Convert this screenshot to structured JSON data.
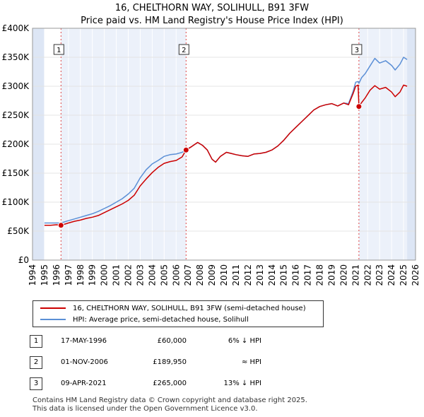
{
  "header": {
    "title": "16, CHELTHORN WAY, SOLIHULL, B91 3FW",
    "subtitle": "Price paid vs. HM Land Registry's House Price Index (HPI)"
  },
  "colors": {
    "property": "#cc0000",
    "hpi": "#5b8fd6",
    "shade": "#dde6f5"
  },
  "chart_data": {
    "type": "line",
    "title": "Price paid vs. HM Land Registry's House Price Index (HPI)",
    "xlabel": "",
    "ylabel": "",
    "xlim": [
      1994,
      2026
    ],
    "ylim": [
      0,
      400000
    ],
    "x_ticks": [
      "1994",
      "1995",
      "1996",
      "1997",
      "1998",
      "1999",
      "2000",
      "2001",
      "2002",
      "2003",
      "2004",
      "2005",
      "2006",
      "2007",
      "2008",
      "2009",
      "2010",
      "2011",
      "2012",
      "2013",
      "2014",
      "2015",
      "2016",
      "2017",
      "2018",
      "2019",
      "2020",
      "2021",
      "2022",
      "2023",
      "2024",
      "2025",
      "2026"
    ],
    "y_ticks": [
      {
        "value": 0,
        "label": "£0"
      },
      {
        "value": 50000,
        "label": "£50K"
      },
      {
        "value": 100000,
        "label": "£100K"
      },
      {
        "value": 150000,
        "label": "£150K"
      },
      {
        "value": 200000,
        "label": "£200K"
      },
      {
        "value": 250000,
        "label": "£250K"
      },
      {
        "value": 300000,
        "label": "£300K"
      },
      {
        "value": 350000,
        "label": "£350K"
      },
      {
        "value": 400000,
        "label": "£400K"
      }
    ],
    "grid": true,
    "data_range": [
      1995.0,
      2025.3
    ],
    "series": [
      {
        "name": "16, CHELTHORN WAY, SOLIHULL, B91 3FW (semi-detached house)",
        "x": [
          1995.0,
          1995.5,
          1996.0,
          1996.38,
          1997.0,
          1997.5,
          1998.0,
          1998.5,
          1999.0,
          1999.5,
          2000.0,
          2000.5,
          2001.0,
          2001.5,
          2002.0,
          2002.5,
          2003.0,
          2003.5,
          2004.0,
          2004.5,
          2005.0,
          2005.5,
          2006.0,
          2006.5,
          2006.83,
          2007.3,
          2007.8,
          2008.2,
          2008.6,
          2009.0,
          2009.3,
          2009.7,
          2010.2,
          2010.6,
          2011.0,
          2011.5,
          2012.0,
          2012.5,
          2013.0,
          2013.5,
          2014.0,
          2014.5,
          2015.0,
          2015.5,
          2016.0,
          2016.5,
          2017.0,
          2017.5,
          2018.0,
          2018.5,
          2019.0,
          2019.5,
          2020.0,
          2020.4,
          2020.8,
          2021.0,
          2021.2,
          2021.27,
          2021.5,
          2021.8,
          2022.2,
          2022.6,
          2023.0,
          2023.5,
          2024.0,
          2024.3,
          2024.7,
          2025.0,
          2025.3
        ],
        "y": [
          60000,
          60000,
          61000,
          60000,
          64000,
          67000,
          69000,
          72000,
          74000,
          77000,
          82000,
          87000,
          92000,
          97000,
          103000,
          112000,
          128000,
          140000,
          151000,
          160000,
          167000,
          170000,
          172000,
          178000,
          189950,
          196000,
          203000,
          198000,
          190000,
          174000,
          169000,
          179000,
          186000,
          184000,
          182000,
          180000,
          179000,
          183000,
          184000,
          186000,
          190000,
          197000,
          207000,
          219000,
          229000,
          239000,
          249000,
          259000,
          265000,
          268000,
          270000,
          266000,
          271000,
          268000,
          288000,
          300000,
          302000,
          265000,
          272000,
          280000,
          293000,
          301000,
          295000,
          298000,
          290000,
          282000,
          290000,
          302000,
          300000
        ]
      },
      {
        "name": "HPI: Average price, semi-detached house, Solihull",
        "x": [
          1995.0,
          1995.5,
          1996.0,
          1996.38,
          1997.0,
          1997.5,
          1998.0,
          1998.5,
          1999.0,
          1999.5,
          2000.0,
          2000.5,
          2001.0,
          2001.5,
          2002.0,
          2002.5,
          2003.0,
          2003.5,
          2004.0,
          2004.5,
          2005.0,
          2005.5,
          2006.0,
          2006.5,
          2006.83,
          2007.3,
          2007.8,
          2008.2,
          2008.6,
          2009.0,
          2009.3,
          2009.7,
          2010.2,
          2010.6,
          2011.0,
          2011.5,
          2012.0,
          2012.5,
          2013.0,
          2013.5,
          2014.0,
          2014.5,
          2015.0,
          2015.5,
          2016.0,
          2016.5,
          2017.0,
          2017.5,
          2018.0,
          2018.5,
          2019.0,
          2019.5,
          2020.0,
          2020.4,
          2020.8,
          2021.0,
          2021.2,
          2021.27,
          2021.5,
          2021.8,
          2022.2,
          2022.6,
          2023.0,
          2023.5,
          2024.0,
          2024.3,
          2024.7,
          2025.0,
          2025.3
        ],
        "y": [
          64000,
          64000,
          64000,
          64000,
          68000,
          71000,
          74000,
          77000,
          80000,
          84000,
          89000,
          94000,
          100000,
          106000,
          114000,
          124000,
          142000,
          156000,
          166000,
          172000,
          179000,
          182000,
          183000,
          186000,
          190000,
          196000,
          203000,
          198000,
          190000,
          174000,
          169000,
          179000,
          186000,
          184000,
          182000,
          180000,
          179000,
          183000,
          184000,
          186000,
          190000,
          197000,
          207000,
          219000,
          229000,
          239000,
          249000,
          259000,
          265000,
          268000,
          270000,
          266000,
          271000,
          270000,
          292000,
          307000,
          308000,
          305000,
          315000,
          322000,
          335000,
          348000,
          340000,
          344000,
          336000,
          328000,
          338000,
          350000,
          346000
        ]
      }
    ],
    "annotations": [
      {
        "label": "1",
        "x": 1996.38,
        "y": 60000
      },
      {
        "label": "2",
        "x": 2006.83,
        "y": 189950
      },
      {
        "label": "3",
        "x": 2021.27,
        "y": 265000
      }
    ]
  },
  "legend": {
    "property_label": "16, CHELTHORN WAY, SOLIHULL, B91 3FW (semi-detached house)",
    "hpi_label": "HPI: Average price, semi-detached house, Solihull"
  },
  "sales": [
    {
      "num": "1",
      "date": "17-MAY-1996",
      "price": "£60,000",
      "hpi": "6% ↓ HPI"
    },
    {
      "num": "2",
      "date": "01-NOV-2006",
      "price": "£189,950",
      "hpi": "≈ HPI"
    },
    {
      "num": "3",
      "date": "09-APR-2021",
      "price": "£265,000",
      "hpi": "13% ↓ HPI"
    }
  ],
  "footer": {
    "line1": "Contains HM Land Registry data © Crown copyright and database right 2025.",
    "line2": "This data is licensed under the Open Government Licence v3.0."
  }
}
